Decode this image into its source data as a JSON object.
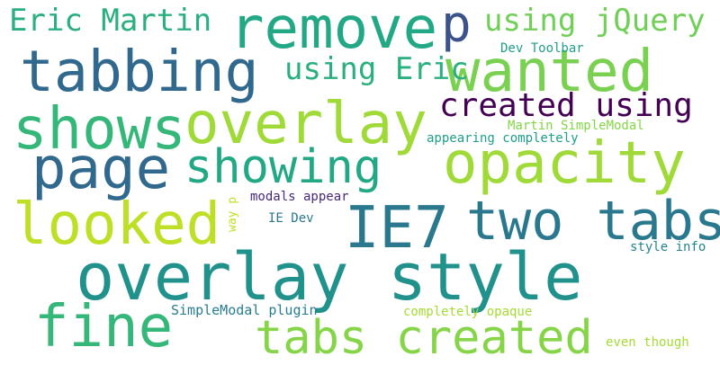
{
  "word_cloud": {
    "words": [
      {
        "text": "overlay style",
        "color": "#21918c"
      },
      {
        "text": "remove",
        "color": "#22a884"
      },
      {
        "text": "p",
        "color": "#3b528b"
      },
      {
        "text": "tabbing",
        "color": "#31688e"
      },
      {
        "text": "wanted",
        "color": "#7ad151"
      },
      {
        "text": "shows",
        "color": "#35b779"
      },
      {
        "text": "overlay",
        "color": "#a0da39"
      },
      {
        "text": "page",
        "color": "#31688e"
      },
      {
        "text": "showing",
        "color": "#22a884"
      },
      {
        "text": "opacity",
        "color": "#a0da39"
      },
      {
        "text": "looked",
        "color": "#bddf26"
      },
      {
        "text": "IE7",
        "color": "#2a788e"
      },
      {
        "text": "two tabs",
        "color": "#2a788e"
      },
      {
        "text": "fine",
        "color": "#35b779"
      },
      {
        "text": "tabs created",
        "color": "#86d549"
      },
      {
        "text": "Eric Martin",
        "color": "#2ab07f"
      },
      {
        "text": "using jQuery",
        "color": "#70cf57"
      },
      {
        "text": "using Eric",
        "color": "#2ab07f"
      },
      {
        "text": "created using",
        "color": "#440154"
      },
      {
        "text": "Dev Toolbar",
        "color": "#1f9e89"
      },
      {
        "text": "Martin SimpleModal",
        "color": "#86d549"
      },
      {
        "text": "appearing completely",
        "color": "#1f9e89"
      },
      {
        "text": "modals appear",
        "color": "#482878"
      },
      {
        "text": "way p",
        "color": "#c2df23"
      },
      {
        "text": "IE Dev",
        "color": "#2a788e"
      },
      {
        "text": "style info",
        "color": "#25838e"
      },
      {
        "text": "SimpleModal plugin",
        "color": "#287d8e"
      },
      {
        "text": "completely opaque",
        "color": "#a5db36"
      },
      {
        "text": "even though",
        "color": "#a5db36"
      }
    ]
  }
}
